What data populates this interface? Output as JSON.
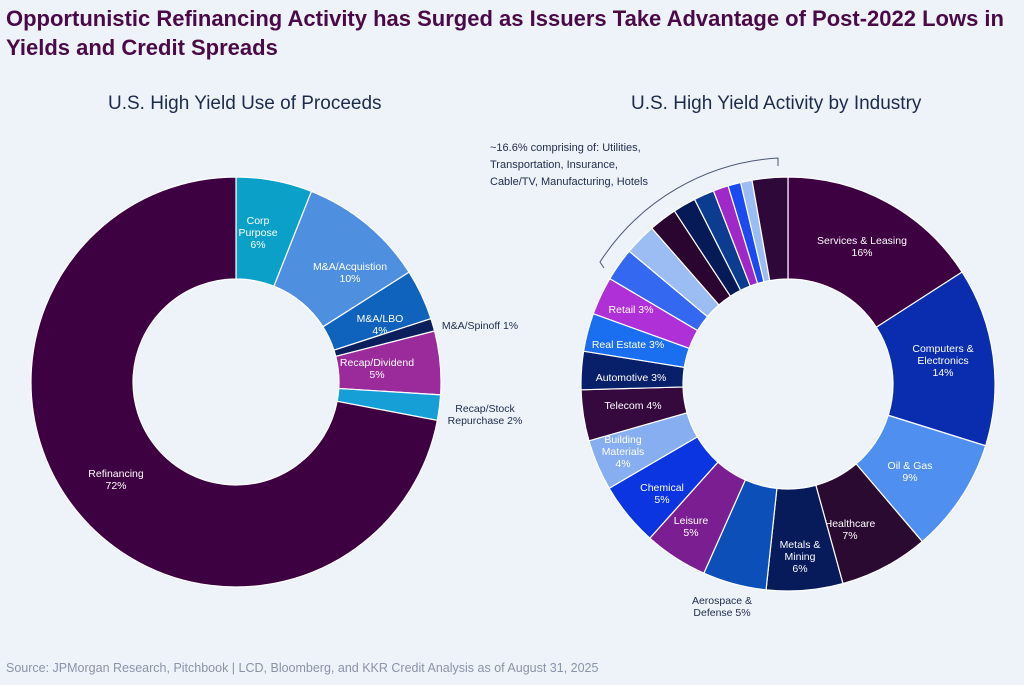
{
  "title": "Opportunistic Refinancing Activity has Surged as Issuers Take Advantage of Post-2022 Lows in Yields and Credit Spreads",
  "source": "Source: JPMorgan Research, Pitchbook | LCD, Bloomberg, and KKR Credit Analysis as of August 31, 2025",
  "chart_data": [
    {
      "type": "pie",
      "title": "U.S. High Yield Use of Proceeds",
      "slices": [
        {
          "label": [
            "Corp",
            "Purpose",
            "6%"
          ],
          "value": 6,
          "color": "#0aa0c8"
        },
        {
          "label": [
            "M&A/Acquistion",
            "10%"
          ],
          "value": 10,
          "color": "#4f8fe0"
        },
        {
          "label": [
            "M&A/LBO",
            "4%"
          ],
          "value": 4,
          "color": "#0f63bd"
        },
        {
          "label": [
            "M&A/Spinoff 1%"
          ],
          "value": 1,
          "color": "#0a1f5c"
        },
        {
          "label": [
            "Recap/Dividend",
            "5%"
          ],
          "value": 5,
          "color": "#9b2a9a"
        },
        {
          "label": [
            "Recap/Stock",
            "Repurchase 2%"
          ],
          "value": 2,
          "color": "#159fd6"
        },
        {
          "label": [
            "Refinancing",
            "72%"
          ],
          "value": 72,
          "color": "#3d0040"
        }
      ]
    },
    {
      "type": "pie",
      "title": "U.S. High Yield Activity by Industry",
      "note": [
        "~16.6% comprising of: Utilities,",
        "Transportation, Insurance,",
        "Cable/TV, Manufacturing, Hotels"
      ],
      "slices": [
        {
          "label": [
            "Services & Leasing",
            "16%"
          ],
          "value": 16,
          "color": "#3d0040"
        },
        {
          "label": [
            "Computers &",
            "Electronics",
            "14%"
          ],
          "value": 14,
          "color": "#0a2db0"
        },
        {
          "label": [
            "Oil & Gas",
            "9%"
          ],
          "value": 9,
          "color": "#4f8ff0"
        },
        {
          "label": [
            "Healthcare",
            "7%"
          ],
          "value": 7,
          "color": "#2a0a30"
        },
        {
          "label": [
            "Metals &",
            "Mining",
            "6%"
          ],
          "value": 6,
          "color": "#071a5a"
        },
        {
          "label": [
            "Aerospace &",
            "Defense 5%"
          ],
          "value": 5,
          "color": "#0d4fb8"
        },
        {
          "label": [
            "Leisure",
            "5%"
          ],
          "value": 5,
          "color": "#7a1e92"
        },
        {
          "label": [
            "Chemical",
            "5%"
          ],
          "value": 5,
          "color": "#0a35e0"
        },
        {
          "label": [
            "Building",
            "Materials",
            "4%"
          ],
          "value": 4,
          "color": "#86aef0"
        },
        {
          "label": [
            "Telecom 4%"
          ],
          "value": 4,
          "color": "#35083e"
        },
        {
          "label": [
            "Automotive 3%"
          ],
          "value": 3,
          "color": "#08206a"
        },
        {
          "label": [
            "Real Estate 3%"
          ],
          "value": 3,
          "color": "#1a6ff0"
        },
        {
          "label": [
            "Retail 3%"
          ],
          "value": 3,
          "color": "#b030d8"
        },
        {
          "label": [],
          "value": 2.6,
          "color": "#3468f0"
        },
        {
          "label": [],
          "value": 2.5,
          "color": "#9cbcf4"
        },
        {
          "label": [],
          "value": 2.2,
          "color": "#2a0530"
        },
        {
          "label": [],
          "value": 1.8,
          "color": "#061a58"
        },
        {
          "label": [],
          "value": 1.6,
          "color": "#0c3c90"
        },
        {
          "label": [],
          "value": 1.2,
          "color": "#a028c8"
        },
        {
          "label": [],
          "value": 1.0,
          "color": "#1a4af0"
        },
        {
          "label": [],
          "value": 0.9,
          "color": "#9cbcf4"
        },
        {
          "label": [],
          "value": 2.8,
          "color": "#2e0838"
        }
      ]
    }
  ]
}
